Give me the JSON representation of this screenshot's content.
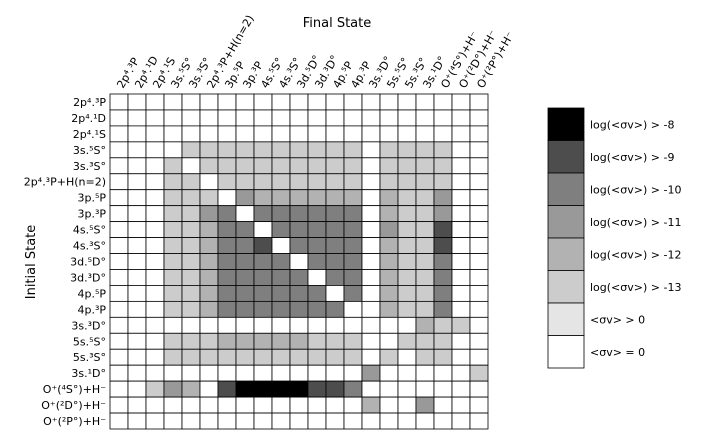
{
  "chart_data": {
    "type": "heatmap",
    "title": "Final State",
    "xlabel": "Final State",
    "ylabel": "Initial State",
    "x_labels": [
      "2p⁴.³P",
      "2p⁴.¹D",
      "2p⁴.¹S",
      "3s.⁵S°",
      "3s.³S°",
      "2p⁴.³P+H(n=2)",
      "3p.⁵P",
      "3p.³P",
      "4s.⁵S°",
      "4s.³S°",
      "3d.⁵D°",
      "3d.³D°",
      "4p.⁵P",
      "4p.³P",
      "3s.³D°",
      "5s.⁵S°",
      "5s.³S°",
      "3s.¹D°",
      "O⁺(⁴S°)+H⁻",
      "O⁺(²D°)+H⁻",
      "O⁺(²P°)+H⁻"
    ],
    "y_labels": [
      "2p⁴.³P",
      "2p⁴.¹D",
      "2p⁴.¹S",
      "3s.⁵S°",
      "3s.³S°",
      "2p⁴.³P+H(n=2)",
      "3p.⁵P",
      "3p.³P",
      "4s.⁵S°",
      "4s.³S°",
      "3d.⁵D°",
      "3d.³D°",
      "4p.⁵P",
      "4p.³P",
      "3s.³D°",
      "5s.⁵S°",
      "5s.³S°",
      "3s.¹D°",
      "O⁺(⁴S°)+H⁻",
      "O⁺(²D°)+H⁻",
      "O⁺(²P°)+H⁻"
    ],
    "legend": [
      {
        "level": 7,
        "label": "log(<σv>) >  -8",
        "color": "#000000"
      },
      {
        "level": 6,
        "label": "log(<σv>) >  -9",
        "color": "#4d4d4d"
      },
      {
        "level": 5,
        "label": "log(<σv>) > -10",
        "color": "#7f7f7f"
      },
      {
        "level": 4,
        "label": "log(<σv>) > -11",
        "color": "#999999"
      },
      {
        "level": 3,
        "label": "log(<σv>) > -12",
        "color": "#b2b2b2"
      },
      {
        "level": 2,
        "label": "log(<σv>) > -13",
        "color": "#cccccc"
      },
      {
        "level": 1,
        "label": "<σv> > 0",
        "color": "#e5e5e5"
      },
      {
        "level": 0,
        "label": "<σv> = 0",
        "color": "#ffffff"
      }
    ],
    "legend_placement": "right",
    "matrix": [
      [
        0,
        0,
        0,
        0,
        0,
        0,
        0,
        0,
        0,
        0,
        0,
        0,
        0,
        0,
        0,
        0,
        0,
        0,
        0,
        0,
        0
      ],
      [
        0,
        0,
        0,
        0,
        0,
        0,
        0,
        0,
        0,
        0,
        0,
        0,
        0,
        0,
        0,
        0,
        0,
        0,
        0,
        0,
        0
      ],
      [
        0,
        0,
        0,
        0,
        0,
        0,
        0,
        0,
        0,
        0,
        0,
        0,
        0,
        0,
        0,
        0,
        0,
        0,
        0,
        0,
        0
      ],
      [
        0,
        0,
        0,
        0,
        2,
        2,
        2,
        2,
        2,
        2,
        2,
        2,
        2,
        2,
        0,
        2,
        2,
        2,
        2,
        0,
        0
      ],
      [
        0,
        0,
        0,
        2,
        0,
        2,
        2,
        2,
        2,
        2,
        2,
        2,
        2,
        2,
        0,
        2,
        2,
        2,
        2,
        0,
        0
      ],
      [
        0,
        0,
        0,
        2,
        2,
        0,
        2,
        2,
        2,
        2,
        2,
        2,
        2,
        2,
        0,
        2,
        2,
        2,
        2,
        0,
        0
      ],
      [
        0,
        0,
        0,
        2,
        2,
        2,
        0,
        4,
        3,
        3,
        3,
        3,
        3,
        3,
        0,
        3,
        2,
        2,
        4,
        0,
        0
      ],
      [
        0,
        0,
        0,
        2,
        2,
        4,
        5,
        0,
        5,
        5,
        5,
        5,
        5,
        5,
        0,
        3,
        2,
        2,
        4,
        0,
        0
      ],
      [
        0,
        0,
        0,
        2,
        2,
        3,
        5,
        5,
        0,
        5,
        5,
        5,
        5,
        5,
        0,
        4,
        2,
        2,
        6,
        0,
        0
      ],
      [
        0,
        0,
        0,
        2,
        2,
        3,
        5,
        5,
        6,
        0,
        5,
        5,
        5,
        5,
        0,
        3,
        2,
        2,
        6,
        0,
        0
      ],
      [
        0,
        0,
        0,
        2,
        2,
        3,
        5,
        5,
        5,
        5,
        0,
        5,
        5,
        5,
        0,
        3,
        2,
        2,
        5,
        0,
        0
      ],
      [
        0,
        0,
        0,
        2,
        2,
        3,
        5,
        5,
        5,
        5,
        5,
        0,
        5,
        5,
        0,
        3,
        2,
        2,
        5,
        0,
        0
      ],
      [
        0,
        0,
        0,
        2,
        2,
        3,
        5,
        5,
        5,
        5,
        5,
        5,
        0,
        5,
        0,
        3,
        2,
        2,
        5,
        0,
        0
      ],
      [
        0,
        0,
        0,
        2,
        2,
        3,
        5,
        5,
        5,
        5,
        5,
        5,
        5,
        0,
        0,
        3,
        2,
        2,
        5,
        0,
        0
      ],
      [
        0,
        0,
        0,
        0,
        0,
        0,
        0,
        0,
        0,
        0,
        0,
        0,
        0,
        0,
        0,
        0,
        0,
        3,
        2,
        2,
        0
      ],
      [
        0,
        0,
        0,
        2,
        2,
        2,
        3,
        3,
        3,
        3,
        3,
        2,
        2,
        2,
        0,
        0,
        2,
        2,
        2,
        0,
        0
      ],
      [
        0,
        0,
        0,
        2,
        2,
        2,
        2,
        2,
        2,
        2,
        2,
        2,
        2,
        2,
        0,
        2,
        0,
        2,
        2,
        0,
        0
      ],
      [
        0,
        0,
        0,
        0,
        0,
        0,
        0,
        0,
        0,
        0,
        0,
        0,
        0,
        0,
        4,
        0,
        0,
        0,
        0,
        0,
        2
      ],
      [
        0,
        0,
        2,
        4,
        3,
        0,
        6,
        7,
        7,
        7,
        7,
        6,
        6,
        5,
        0,
        0,
        0,
        0,
        0,
        0,
        0
      ],
      [
        0,
        0,
        0,
        0,
        0,
        0,
        0,
        0,
        0,
        0,
        0,
        0,
        0,
        0,
        3,
        0,
        0,
        4,
        0,
        0,
        0
      ],
      [
        0,
        0,
        0,
        0,
        0,
        0,
        0,
        0,
        0,
        0,
        0,
        0,
        0,
        0,
        0,
        0,
        0,
        0,
        0,
        0,
        0
      ]
    ],
    "grid": true
  }
}
